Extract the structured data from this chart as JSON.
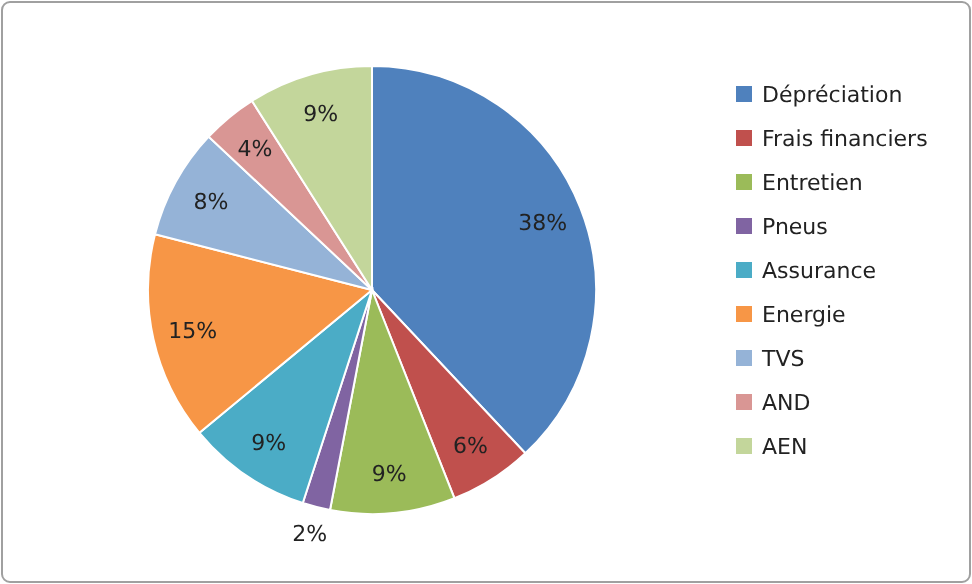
{
  "chart_data": {
    "type": "pie",
    "categories": [
      "Dépréciation",
      "Frais financiers",
      "Entretien",
      "Pneus",
      "Assurance",
      "Energie",
      "TVS",
      "AND",
      "AEN"
    ],
    "values": [
      38,
      6,
      9,
      2,
      9,
      15,
      8,
      4,
      9
    ],
    "colors": [
      "#4f81bd",
      "#c0504d",
      "#9bbb59",
      "#8064a2",
      "#4bacc6",
      "#f79646",
      "#95b3d7",
      "#d99694",
      "#c3d69b"
    ],
    "value_labels": [
      "38%",
      "6%",
      "9%",
      "2%",
      "9%",
      "15%",
      "8%",
      "4%",
      "9%"
    ],
    "legend": "right"
  }
}
